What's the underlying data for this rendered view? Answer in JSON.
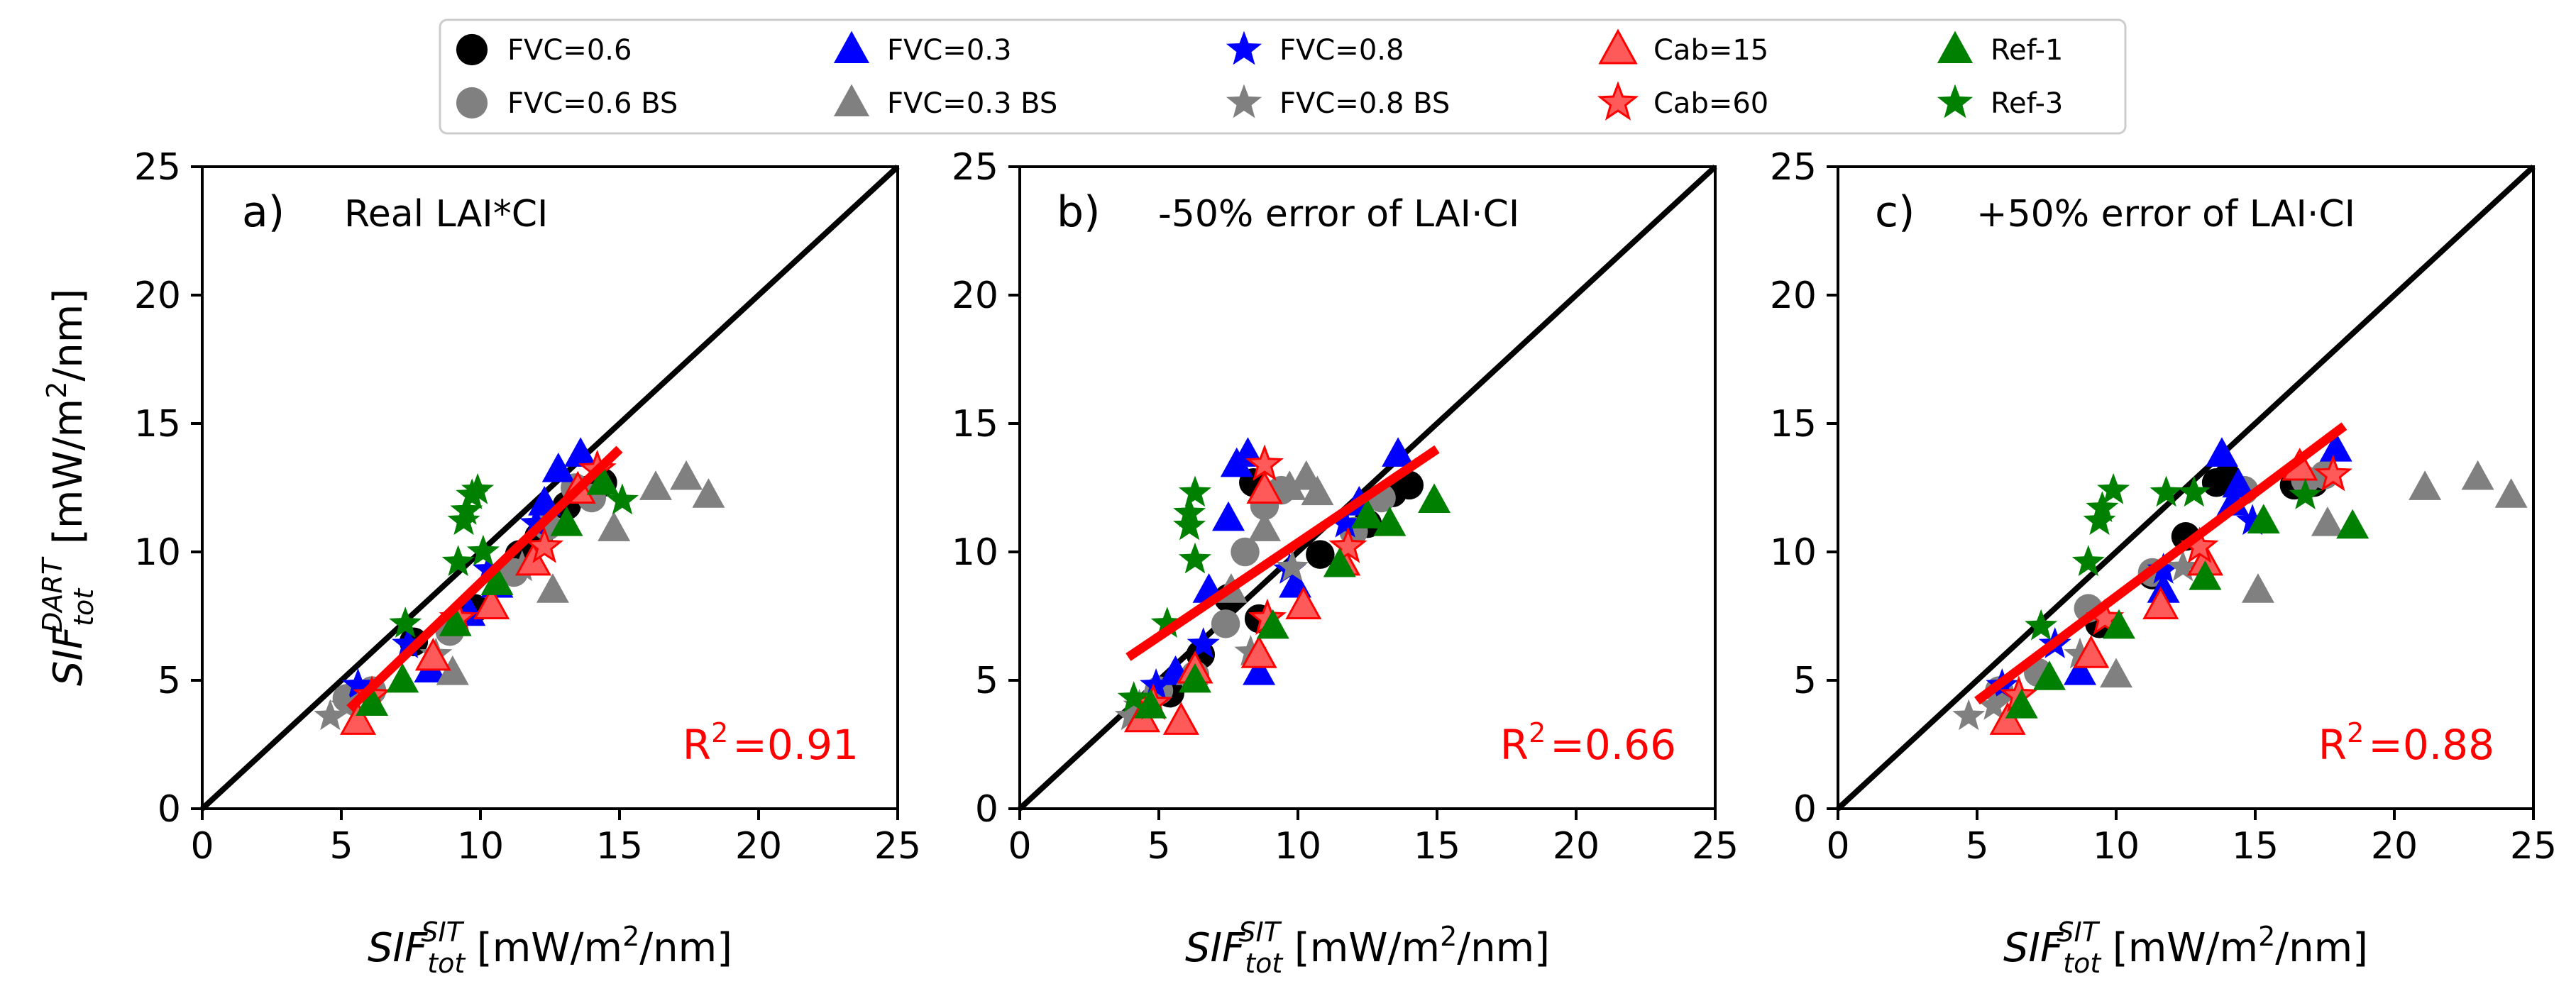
{
  "chart_data": {
    "type": "scatter",
    "shared": {
      "xlabel": {
        "base": "SIF",
        "sub": "tot",
        "sup": "SIT",
        "unit_pre": "[mW/m",
        "unit_sup": "2",
        "unit_post": "/nm]"
      },
      "ylabel": {
        "base": "SIF",
        "sub": "tot",
        "sup": "DART",
        "unit_pre": "[mW/m",
        "unit_sup": "2",
        "unit_post": "/nm]"
      },
      "xlim": [
        0,
        25
      ],
      "ylim": [
        0,
        25
      ],
      "xticks": [
        0,
        5,
        10,
        15,
        20,
        25
      ],
      "yticks": [
        0,
        5,
        10,
        15,
        20,
        25
      ],
      "one_to_one_line": true
    },
    "legend": {
      "placement": "top",
      "entries": [
        {
          "label": "FVC=0.6",
          "marker": "circle",
          "color": "#000000"
        },
        {
          "label": "FVC=0.6 BS",
          "marker": "circle",
          "color": "#808080"
        },
        {
          "label": "FVC=0.3",
          "marker": "triangle",
          "color": "#0000ff"
        },
        {
          "label": "FVC=0.3 BS",
          "marker": "triangle",
          "color": "#808080"
        },
        {
          "label": "FVC=0.8",
          "marker": "star",
          "color": "#0000ff"
        },
        {
          "label": "FVC=0.8 BS",
          "marker": "star",
          "color": "#808080"
        },
        {
          "label": "Cab=15",
          "marker": "triangle",
          "color": "#ff5a5a",
          "edge": "#ff0000"
        },
        {
          "label": "Cab=60",
          "marker": "star",
          "color": "#ff5a5a",
          "edge": "#ff0000"
        },
        {
          "label": "Ref-1",
          "marker": "triangle",
          "color": "#008000"
        },
        {
          "label": "Ref-3",
          "marker": "star",
          "color": "#008000"
        }
      ]
    },
    "panels": [
      {
        "letter": "a)",
        "title": "Real LAI*CI",
        "r2_prefix": "R",
        "r2_sup": "2",
        "r2_value": "=0.91",
        "fit_line": {
          "x": [
            5.3,
            15.0
          ],
          "y": [
            3.9,
            14.0
          ],
          "color": "#ff0000"
        },
        "series": [
          {
            "name": "FVC=0.6",
            "points": [
              [
                7.6,
                6.5
              ],
              [
                9.8,
                7.8
              ],
              [
                11.4,
                9.9
              ],
              [
                12.1,
                10.6
              ],
              [
                13.1,
                11.8
              ],
              [
                13.8,
                12.4
              ],
              [
                14.4,
                12.7
              ]
            ]
          },
          {
            "name": "FVC=0.6 BS",
            "points": [
              [
                5.2,
                4.3
              ],
              [
                6.1,
                4.6
              ],
              [
                8.9,
                6.9
              ],
              [
                11.2,
                9.2
              ],
              [
                12.4,
                11.0
              ],
              [
                13.4,
                12.5
              ],
              [
                14.0,
                12.1
              ]
            ]
          },
          {
            "name": "FVC=0.3",
            "points": [
              [
                8.2,
                5.4
              ],
              [
                10.6,
                8.7
              ],
              [
                12.8,
                13.2
              ],
              [
                13.6,
                13.8
              ],
              [
                12.3,
                11.9
              ],
              [
                9.6,
                7.6
              ]
            ]
          },
          {
            "name": "FVC=0.3 BS",
            "points": [
              [
                9.0,
                5.3
              ],
              [
                12.6,
                8.5
              ],
              [
                14.8,
                10.9
              ],
              [
                16.3,
                12.5
              ],
              [
                17.4,
                12.9
              ],
              [
                18.2,
                12.2
              ]
            ]
          },
          {
            "name": "FVC=0.8",
            "points": [
              [
                5.6,
                4.8
              ],
              [
                7.4,
                6.4
              ],
              [
                10.3,
                9.3
              ],
              [
                12.0,
                11.1
              ]
            ]
          },
          {
            "name": "FVC=0.8 BS",
            "points": [
              [
                4.6,
                3.6
              ],
              [
                5.2,
                4.0
              ],
              [
                8.4,
                6.0
              ],
              [
                11.5,
                9.4
              ]
            ]
          },
          {
            "name": "Cab=15",
            "points": [
              [
                5.6,
                3.4
              ],
              [
                8.3,
                5.9
              ],
              [
                10.4,
                7.9
              ],
              [
                11.9,
                9.6
              ],
              [
                13.5,
                12.4
              ]
            ]
          },
          {
            "name": "Cab=60",
            "points": [
              [
                6.1,
                4.4
              ],
              [
                9.2,
                7.4
              ],
              [
                12.3,
                10.2
              ],
              [
                14.2,
                13.2
              ]
            ]
          },
          {
            "name": "Ref-1",
            "points": [
              [
                6.1,
                4.1
              ],
              [
                7.2,
                5.0
              ],
              [
                9.1,
                7.2
              ],
              [
                10.6,
                8.8
              ],
              [
                13.1,
                11.1
              ],
              [
                14.4,
                12.7
              ]
            ]
          },
          {
            "name": "Ref-3",
            "points": [
              [
                7.3,
                7.2
              ],
              [
                9.2,
                9.6
              ],
              [
                9.4,
                11.2
              ],
              [
                9.5,
                11.6
              ],
              [
                9.7,
                12.2
              ],
              [
                9.9,
                12.4
              ],
              [
                10.1,
                10.0
              ],
              [
                15.1,
                12.0
              ]
            ]
          }
        ]
      },
      {
        "letter": "b)",
        "title": "-50% error of LAI·CI",
        "r2_prefix": "R",
        "r2_sup": "2",
        "r2_value": "=0.66",
        "fit_line": {
          "x": [
            3.9,
            15.0
          ],
          "y": [
            5.9,
            14.0
          ],
          "color": "#ff0000"
        },
        "series": [
          {
            "name": "FVC=0.6",
            "points": [
              [
                5.4,
                4.5
              ],
              [
                6.5,
                6.0
              ],
              [
                7.5,
                8.2
              ],
              [
                8.4,
                12.7
              ],
              [
                8.6,
                7.4
              ],
              [
                10.8,
                9.9
              ],
              [
                12.5,
                11.1
              ],
              [
                13.4,
                12.3
              ],
              [
                14.0,
                12.6
              ]
            ]
          },
          {
            "name": "FVC=0.6 BS",
            "points": [
              [
                5.0,
                4.6
              ],
              [
                6.3,
                5.2
              ],
              [
                7.4,
                7.2
              ],
              [
                8.1,
                10.0
              ],
              [
                8.8,
                11.8
              ],
              [
                9.4,
                12.4
              ],
              [
                12.0,
                10.8
              ],
              [
                13.0,
                12.1
              ]
            ]
          },
          {
            "name": "FVC=0.3",
            "points": [
              [
                5.6,
                5.3
              ],
              [
                6.8,
                8.5
              ],
              [
                7.5,
                11.3
              ],
              [
                7.8,
                13.4
              ],
              [
                8.2,
                13.8
              ],
              [
                8.6,
                5.3
              ],
              [
                9.9,
                8.7
              ],
              [
                12.2,
                11.9
              ],
              [
                13.6,
                13.8
              ]
            ]
          },
          {
            "name": "FVC=0.3 BS",
            "points": [
              [
                4.6,
                4.2
              ],
              [
                6.2,
                5.3
              ],
              [
                7.6,
                8.5
              ],
              [
                8.8,
                10.9
              ],
              [
                9.7,
                12.5
              ],
              [
                10.3,
                12.9
              ],
              [
                10.7,
                12.3
              ]
            ]
          },
          {
            "name": "FVC=0.8",
            "points": [
              [
                4.9,
                4.8
              ],
              [
                6.6,
                6.4
              ],
              [
                9.7,
                9.3
              ],
              [
                11.7,
                11.1
              ]
            ]
          },
          {
            "name": "FVC=0.8 BS",
            "points": [
              [
                4.0,
                3.6
              ],
              [
                4.3,
                4.0
              ],
              [
                8.3,
                6.1
              ],
              [
                9.8,
                9.4
              ]
            ]
          },
          {
            "name": "Cab=15",
            "points": [
              [
                4.4,
                3.5
              ],
              [
                5.8,
                3.4
              ],
              [
                6.3,
                5.4
              ],
              [
                8.6,
                6.0
              ],
              [
                10.2,
                7.9
              ],
              [
                11.6,
                9.6
              ],
              [
                8.8,
                12.4
              ]
            ]
          },
          {
            "name": "Cab=60",
            "points": [
              [
                4.8,
                4.1
              ],
              [
                8.9,
                7.4
              ],
              [
                11.8,
                10.2
              ],
              [
                8.8,
                13.4
              ]
            ]
          },
          {
            "name": "Ref-1",
            "points": [
              [
                4.7,
                4.0
              ],
              [
                6.3,
                5.0
              ],
              [
                9.1,
                7.1
              ],
              [
                11.5,
                9.5
              ],
              [
                12.5,
                11.4
              ],
              [
                13.3,
                11.1
              ],
              [
                14.9,
                12.0
              ]
            ]
          },
          {
            "name": "Ref-3",
            "points": [
              [
                4.1,
                4.3
              ],
              [
                5.3,
                7.2
              ],
              [
                6.3,
                9.7
              ],
              [
                6.1,
                11.5
              ],
              [
                6.3,
                12.3
              ],
              [
                6.1,
                11.0
              ]
            ]
          }
        ]
      },
      {
        "letter": "c)",
        "title": "+50% error of LAI·CI",
        "r2_prefix": "R",
        "r2_sup": "2",
        "r2_value": "=0.88",
        "fit_line": {
          "x": [
            5.0,
            18.2
          ],
          "y": [
            4.2,
            14.9
          ],
          "color": "#ff0000"
        },
        "series": [
          {
            "name": "FVC=0.6",
            "points": [
              [
                9.4,
                7.2
              ],
              [
                11.3,
                9.1
              ],
              [
                12.5,
                10.6
              ],
              [
                13.6,
                12.7
              ],
              [
                14.0,
                12.9
              ],
              [
                16.4,
                12.6
              ],
              [
                17.1,
                12.7
              ]
            ]
          },
          {
            "name": "FVC=0.6 BS",
            "points": [
              [
                5.8,
                4.6
              ],
              [
                7.2,
                5.3
              ],
              [
                9.0,
                7.8
              ],
              [
                11.3,
                9.2
              ],
              [
                14.6,
                12.4
              ],
              [
                16.8,
                12.8
              ],
              [
                17.5,
                13.0
              ]
            ]
          },
          {
            "name": "FVC=0.3",
            "points": [
              [
                8.7,
                5.3
              ],
              [
                11.7,
                8.5
              ],
              [
                13.8,
                13.8
              ],
              [
                14.4,
                12.6
              ],
              [
                17.9,
                14.0
              ],
              [
                14.2,
                11.9
              ]
            ]
          },
          {
            "name": "FVC=0.3 BS",
            "points": [
              [
                10.0,
                5.2
              ],
              [
                15.1,
                8.5
              ],
              [
                17.6,
                11.1
              ],
              [
                21.1,
                12.5
              ],
              [
                23.0,
                12.9
              ],
              [
                24.2,
                12.2
              ]
            ]
          },
          {
            "name": "FVC=0.8",
            "points": [
              [
                5.9,
                4.8
              ],
              [
                7.8,
                6.4
              ],
              [
                11.7,
                9.3
              ],
              [
                14.9,
                11.2
              ]
            ]
          },
          {
            "name": "FVC=0.8 BS",
            "points": [
              [
                4.7,
                3.6
              ],
              [
                5.6,
                4.0
              ],
              [
                8.7,
                6.0
              ],
              [
                12.4,
                9.4
              ]
            ]
          },
          {
            "name": "Cab=15",
            "points": [
              [
                6.1,
                3.4
              ],
              [
                9.1,
                6.0
              ],
              [
                11.6,
                7.9
              ],
              [
                13.2,
                9.6
              ],
              [
                16.6,
                13.3
              ]
            ]
          },
          {
            "name": "Cab=60",
            "points": [
              [
                6.5,
                4.4
              ],
              [
                9.6,
                7.4
              ],
              [
                13.0,
                10.2
              ],
              [
                17.8,
                13.0
              ]
            ]
          },
          {
            "name": "Ref-1",
            "points": [
              [
                6.6,
                4.0
              ],
              [
                7.6,
                5.1
              ],
              [
                10.1,
                7.1
              ],
              [
                13.2,
                9.0
              ],
              [
                15.3,
                11.2
              ],
              [
                18.5,
                11.0
              ]
            ]
          },
          {
            "name": "Ref-3",
            "points": [
              [
                7.3,
                7.1
              ],
              [
                9.0,
                9.6
              ],
              [
                9.4,
                11.2
              ],
              [
                9.5,
                11.7
              ],
              [
                9.9,
                12.4
              ],
              [
                11.8,
                12.3
              ],
              [
                12.8,
                12.3
              ],
              [
                16.8,
                12.2
              ]
            ]
          }
        ]
      }
    ]
  }
}
